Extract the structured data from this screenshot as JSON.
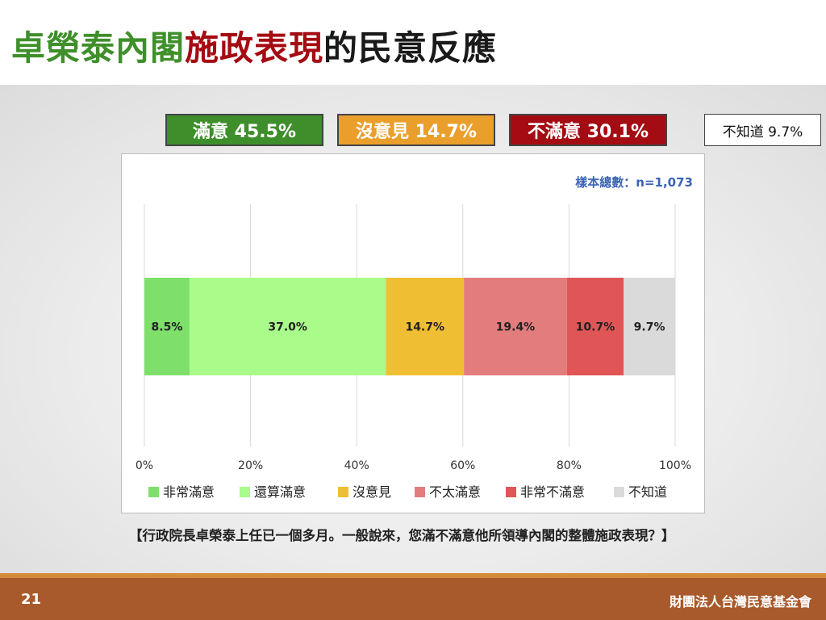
{
  "title": {
    "part1": "卓榮泰內閣",
    "part2": "施政表現",
    "part3": "的民意反應"
  },
  "summary": [
    {
      "label": "滿意 45.5%",
      "bg": "#3e8e2b",
      "color": "#ffffff"
    },
    {
      "label": "沒意見 14.7%",
      "bg": "#ea9f2c",
      "color": "#ffffff"
    },
    {
      "label": "不滿意 30.1%",
      "bg": "#a50b12",
      "color": "#ffffff"
    },
    {
      "label": "不知道 9.7%",
      "bg": "#ffffff",
      "color": "#111111"
    }
  ],
  "sample_text": "樣本總數：n=1,073",
  "question": "【行政院長卓榮泰上任已一個多月。一般說來，您滿不滿意他所領導內閣的整體施政表現？】",
  "footer": {
    "page": "21",
    "org": "財團法人台灣民意基金會"
  },
  "chart_data": {
    "type": "bar",
    "orientation": "horizontal-stacked",
    "xlim": [
      0,
      100
    ],
    "xticks": [
      "0%",
      "20%",
      "40%",
      "60%",
      "80%",
      "100%"
    ],
    "grid": true,
    "legend_position": "bottom",
    "series": [
      {
        "name": "非常滿意",
        "value": 8.5,
        "label": "8.5%",
        "color": "#7ee06a"
      },
      {
        "name": "還算滿意",
        "value": 37.0,
        "label": "37.0%",
        "color": "#a9fb8a"
      },
      {
        "name": "沒意見",
        "value": 14.7,
        "label": "14.7%",
        "color": "#f0be32"
      },
      {
        "name": "不太滿意",
        "value": 19.4,
        "label": "19.4%",
        "color": "#e37d7d"
      },
      {
        "name": "非常不滿意",
        "value": 10.7,
        "label": "10.7%",
        "color": "#e05657"
      },
      {
        "name": "不知道",
        "value": 9.7,
        "label": "9.7%",
        "color": "#dadada"
      }
    ]
  }
}
